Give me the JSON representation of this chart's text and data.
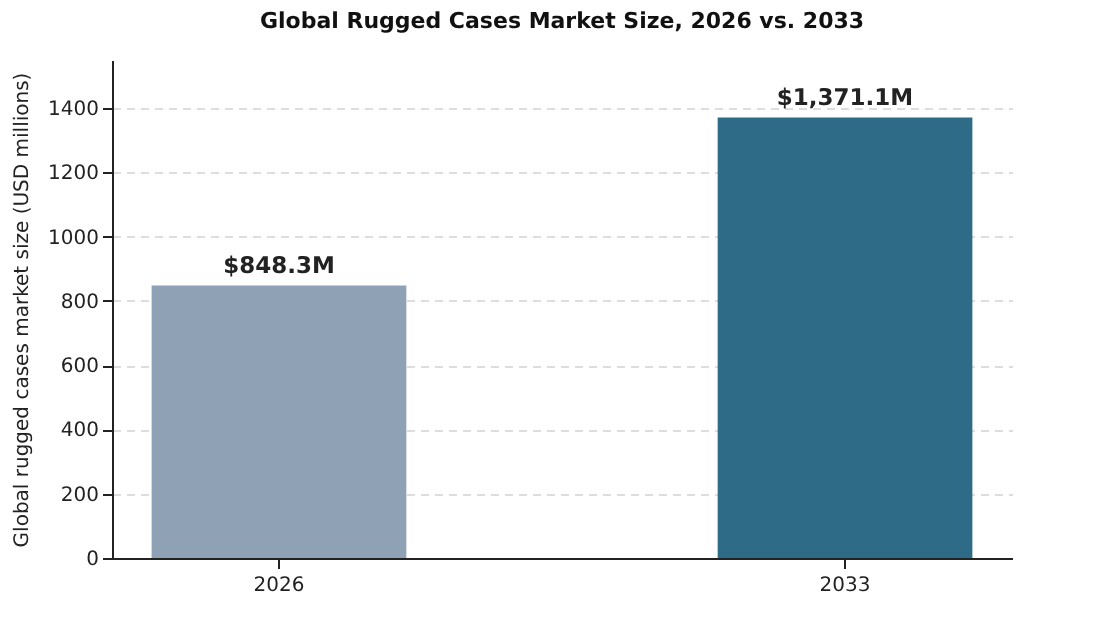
{
  "chart_data": {
    "type": "bar",
    "title": "Global Rugged Cases Market Size, 2026 vs. 2033",
    "ylabel": "Global rugged cases market size (USD millions)",
    "categories": [
      "2026",
      "2033"
    ],
    "values": [
      848.3,
      1371.1
    ],
    "colors": [
      "#8fa1b4",
      "#2e6b86"
    ],
    "value_labels": [
      "$848.3M",
      "$1,371.1M"
    ],
    "ylim": [
      0,
      1550
    ],
    "yticks": [
      0,
      200,
      400,
      600,
      800,
      1000,
      1200,
      1400
    ],
    "grid": "y"
  }
}
